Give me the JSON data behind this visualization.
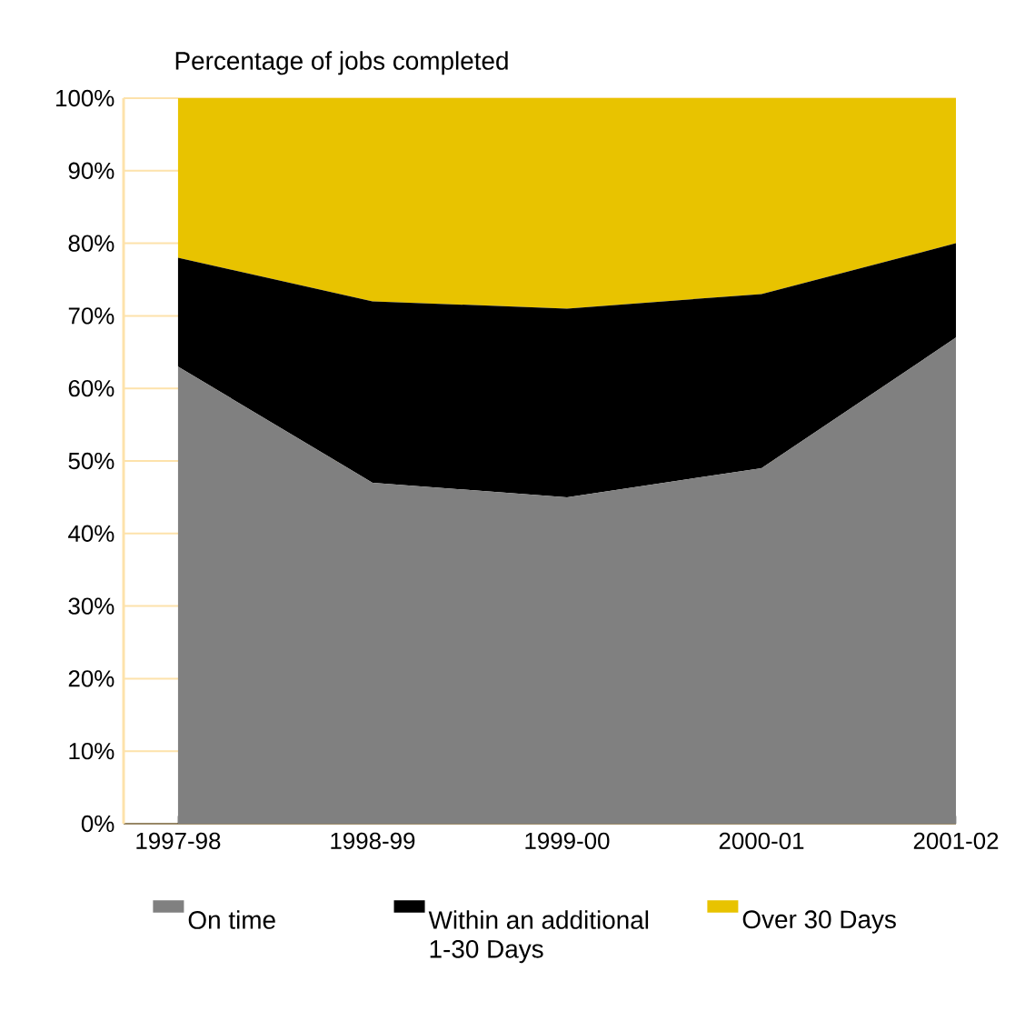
{
  "chart_data": {
    "type": "area",
    "stacked": true,
    "ylabel": "Percentage of jobs completed",
    "categories": [
      "1997-98",
      "1998-99",
      "1999-00",
      "2000-01",
      "2001-02"
    ],
    "series": [
      {
        "name": "On time",
        "color": "#808080",
        "values": [
          63,
          47,
          45,
          49,
          67
        ]
      },
      {
        "name": "Within an additional 1-30 Days",
        "color": "#000000",
        "values": [
          15,
          25,
          26,
          24,
          13
        ]
      },
      {
        "name": "Over 30 Days",
        "color": "#e8c300",
        "values": [
          22,
          28,
          29,
          27,
          20
        ]
      }
    ],
    "ylim": [
      0,
      100
    ],
    "yticks": [
      {
        "value": 0,
        "label": "0%"
      },
      {
        "value": 10,
        "label": "10%"
      },
      {
        "value": 20,
        "label": "20%"
      },
      {
        "value": 30,
        "label": "30%"
      },
      {
        "value": 40,
        "label": "40%"
      },
      {
        "value": 50,
        "label": "50%"
      },
      {
        "value": 60,
        "label": "60%"
      },
      {
        "value": 70,
        "label": "70%"
      },
      {
        "value": 80,
        "label": "80%"
      },
      {
        "value": 90,
        "label": "90%"
      },
      {
        "value": 100,
        "label": "100%"
      }
    ],
    "grid": "y",
    "legend": "bottom"
  }
}
